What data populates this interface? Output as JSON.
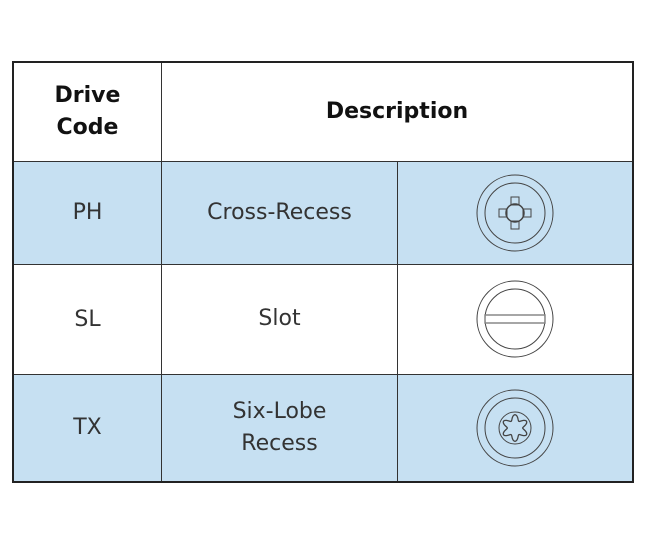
{
  "header": {
    "drive_code": "Drive\nCode",
    "description": "Description"
  },
  "rows": [
    {
      "code": "PH",
      "description": "Cross-Recess",
      "icon": "phillips-drive-icon",
      "highlight": true
    },
    {
      "code": "SL",
      "description": "Slot",
      "icon": "slot-drive-icon",
      "highlight": false
    },
    {
      "code": "TX",
      "description": "Six-Lobe\nRecess",
      "icon": "torx-drive-icon",
      "highlight": true
    }
  ],
  "colors": {
    "row_highlight": "#c6e0f2",
    "border": "#222222"
  }
}
